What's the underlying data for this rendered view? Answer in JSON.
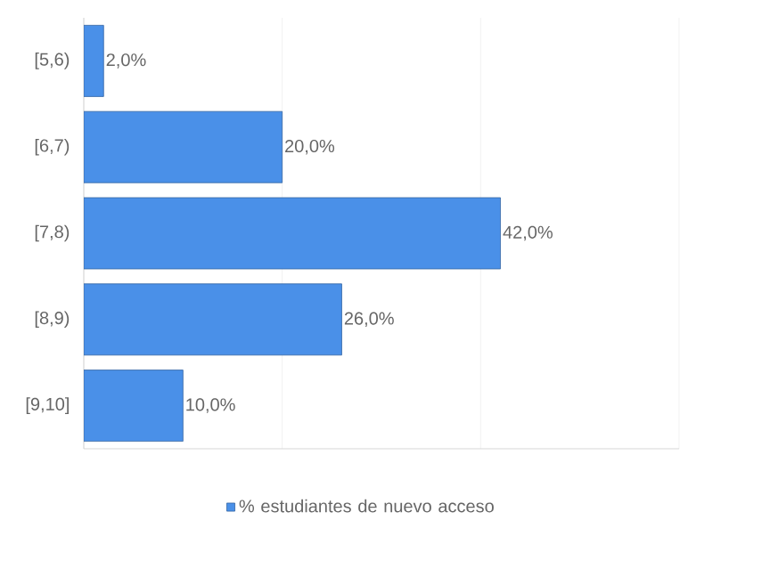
{
  "chart_data": {
    "type": "bar",
    "orientation": "horizontal",
    "categories": [
      "[5,6)",
      "[6,7)",
      "[7,8)",
      "[8,9)",
      "[9,10]"
    ],
    "series": [
      {
        "name": "% estudiantes de nuevo acceso",
        "color": "#4a90e8",
        "values": [
          2,
          20,
          42,
          26,
          10
        ],
        "value_labels": [
          "2,0%",
          "20,0%",
          "42,0%",
          "26,0%",
          "10,0%"
        ]
      }
    ],
    "xlim": [
      0,
      60
    ],
    "xticks": [
      {
        "value": 0,
        "label": null
      },
      {
        "value": 20,
        "label": null
      },
      {
        "value": 40,
        "label": null
      },
      {
        "value": 60,
        "label": null
      }
    ],
    "tick_labels": "y",
    "grid": "x",
    "legend": "bottom"
  }
}
